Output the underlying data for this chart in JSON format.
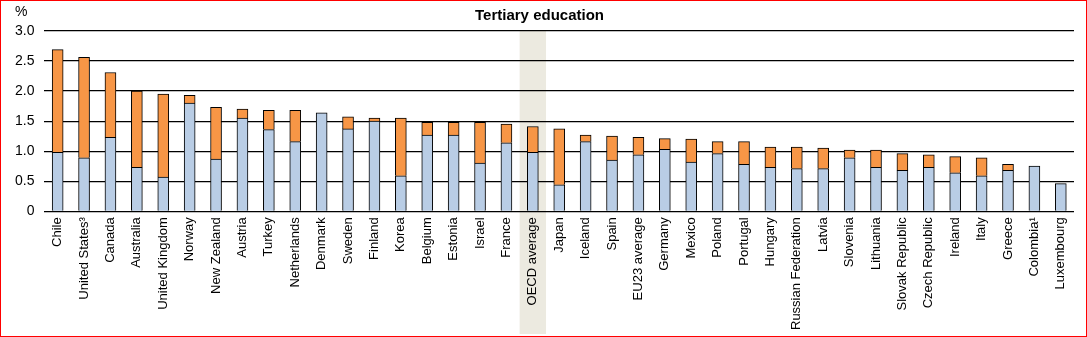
{
  "chart_data": {
    "type": "bar",
    "title": "Tertiary education",
    "ylabel": "%",
    "categories": [
      "Chile",
      "United States³",
      "Canada",
      "Australia",
      "United Kingdom",
      "Norway",
      "New Zealand",
      "Austria",
      "Turkey",
      "Netherlands",
      "Denmark",
      "Sweden",
      "Finland",
      "Korea",
      "Belgium",
      "Estonia",
      "Israel",
      "France",
      "OECD average",
      "Japan",
      "Iceland",
      "Spain",
      "EU23 average",
      "Germany",
      "Mexico",
      "Poland",
      "Portugal",
      "Hungary",
      "Russian Federation",
      "Latvia",
      "Slovenia",
      "Lithuania",
      "Slovak Republic",
      "Czech Republic",
      "Ireland",
      "Italy",
      "Greece",
      "Colombia¹",
      "Luxembourg"
    ],
    "stacked": true,
    "series": [
      {
        "color": "#b9cde5",
        "values": [
          0.98,
          0.89,
          1.23,
          0.73,
          0.57,
          1.8,
          0.87,
          1.55,
          1.36,
          1.16,
          1.64,
          1.37,
          1.5,
          0.59,
          1.27,
          1.27,
          0.8,
          1.14,
          0.98,
          0.44,
          1.16,
          0.85,
          0.94,
          1.03,
          0.82,
          0.96,
          0.78,
          0.73,
          0.71,
          0.71,
          0.89,
          0.73,
          0.68,
          0.73,
          0.64,
          0.59,
          0.68,
          0.75,
          0.46
        ]
      },
      {
        "color": "#f79646",
        "values": [
          1.71,
          1.67,
          1.08,
          1.27,
          1.38,
          0.13,
          0.86,
          0.15,
          0.32,
          0.52,
          0,
          0.2,
          0.05,
          0.96,
          0.21,
          0.21,
          0.68,
          0.31,
          0.43,
          0.93,
          0.11,
          0.4,
          0.29,
          0.18,
          0.38,
          0.2,
          0.38,
          0.34,
          0.36,
          0.34,
          0.13,
          0.29,
          0.28,
          0.21,
          0.27,
          0.3,
          0.1,
          0,
          null
        ]
      }
    ],
    "ylim": [
      0,
      3
    ],
    "yticks": [
      0,
      {
        "value": 0.5,
        "label": "0.5"
      },
      {
        "value": 1,
        "label": "1.0"
      },
      {
        "value": 1.5,
        "label": "1.5"
      },
      {
        "value": 2,
        "label": "2.0"
      },
      {
        "value": 2.5,
        "label": "2.5"
      },
      {
        "value": 3,
        "label": "3.0"
      }
    ],
    "grid": "y",
    "bands": [
      {
        "axis": "x",
        "from": "OECD average",
        "to": "OECD average",
        "color": "#eceae0"
      }
    ]
  }
}
